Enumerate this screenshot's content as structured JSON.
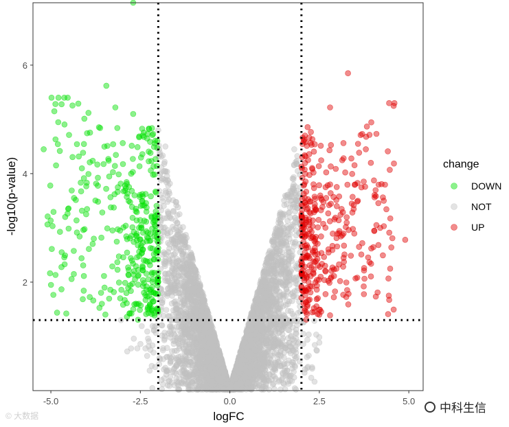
{
  "chart_data": {
    "type": "scatter",
    "xlabel": "logFC",
    "ylabel": "-log10(p-value)",
    "xlim": [
      -5.5,
      5.4
    ],
    "ylim": [
      0,
      7.15
    ],
    "x_ticks": [
      -5.0,
      -2.5,
      0.0,
      2.5,
      5.0
    ],
    "x_tick_labels": [
      "-5.0",
      "-2.5",
      "0.0",
      "2.5",
      "5.0"
    ],
    "y_ticks": [
      2,
      4,
      6
    ],
    "y_tick_labels": [
      "2",
      "4",
      "6"
    ],
    "thresholds": {
      "logFC": [
        -2,
        2
      ],
      "neg_log10_p": 1.3
    },
    "legend": {
      "title": "change",
      "position": "right"
    },
    "series": [
      {
        "name": "DOWN",
        "color": "#00e000",
        "sample_points": [
          [
            -5.2,
            4.45
          ],
          [
            -4.7,
            5.28
          ],
          [
            -4.6,
            3.2
          ],
          [
            -3.95,
            5.12
          ],
          [
            -3.45,
            5.62
          ],
          [
            -3.2,
            5.22
          ],
          [
            -2.7,
            5.1
          ],
          [
            -2.7,
            7.15
          ],
          [
            -3.8,
            2.8
          ],
          [
            -3.5,
            1.9
          ],
          [
            -2.8,
            1.42
          ],
          [
            -2.3,
            1.5
          ]
        ]
      },
      {
        "name": "NOT",
        "color": "#c0c0c0",
        "sample_points": [
          [
            0.0,
            0.05
          ],
          [
            -1.0,
            2.0
          ],
          [
            -2.0,
            4.8
          ],
          [
            1.0,
            2.0
          ],
          [
            1.8,
            4.45
          ],
          [
            -1.8,
            4.5
          ],
          [
            1.5,
            3.0
          ],
          [
            -1.5,
            3.0
          ]
        ]
      },
      {
        "name": "UP",
        "color": "#e00000",
        "sample_points": [
          [
            3.3,
            5.85
          ],
          [
            2.8,
            5.22
          ],
          [
            4.9,
            2.78
          ],
          [
            4.3,
            3.5
          ],
          [
            4.2,
            3.0
          ],
          [
            3.8,
            4.45
          ],
          [
            2.5,
            1.4
          ],
          [
            2.2,
            2.0
          ],
          [
            3.5,
            3.8
          ]
        ]
      }
    ]
  },
  "watermarks": {
    "left": "© 大数据",
    "right": "中科生信"
  }
}
